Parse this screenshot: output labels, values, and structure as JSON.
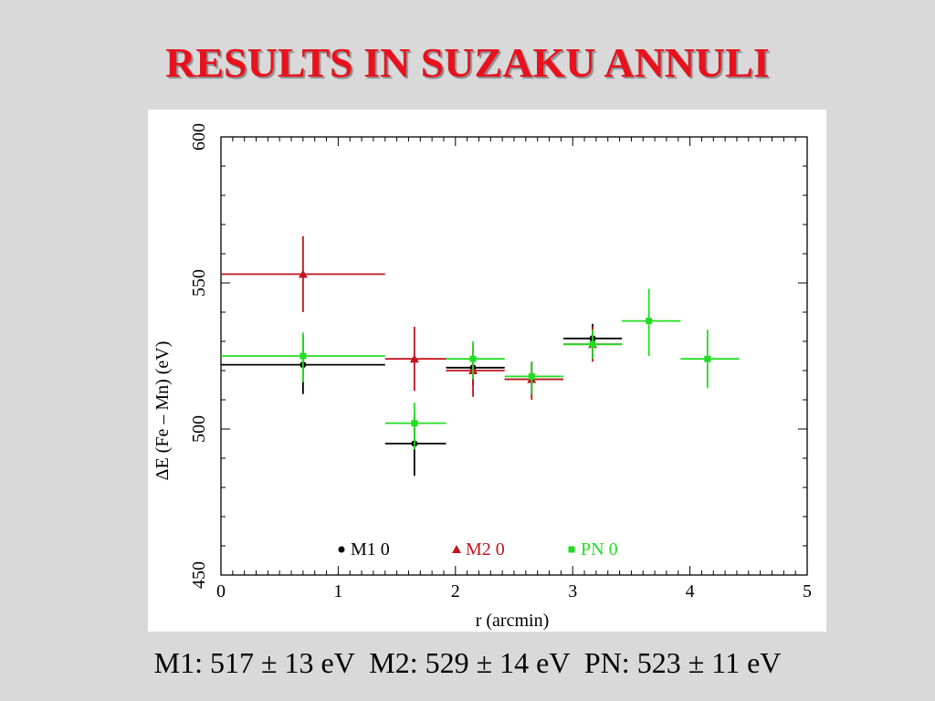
{
  "slide": {
    "title": "RESULTS IN SUZAKU ANNULI",
    "summary": "M1: 517 ± 13 eV  M2: 529 ± 14 eV  PN: 523 ± 11 eV"
  },
  "colors": {
    "title": "#e8111d",
    "M1": "#000000",
    "M2": "#c0151f",
    "PN": "#22dd22"
  },
  "chart_data": {
    "type": "scatter",
    "title": "",
    "xlabel": "r (arcmin)",
    "ylabel": "ΔE (Fe – Mn) (eV)",
    "xlim": [
      0,
      5
    ],
    "ylim": [
      450,
      600
    ],
    "xticks": [
      "0",
      "1",
      "2",
      "3",
      "4",
      "5"
    ],
    "yticks": [
      "450",
      "500",
      "550",
      "600"
    ],
    "legend_placement": "bottom",
    "series": [
      {
        "name": "M1 0",
        "marker": "circle",
        "color": "#000000",
        "points": [
          {
            "x": 0.7,
            "xerr": [
              0.0,
              1.4
            ],
            "y": 522,
            "yerr": [
              512,
              532
            ]
          },
          {
            "x": 1.65,
            "xerr": [
              1.4,
              1.92
            ],
            "y": 495,
            "yerr": [
              484,
              505
            ]
          },
          {
            "x": 2.15,
            "xerr": [
              1.92,
              2.42
            ],
            "y": 521,
            "yerr": [
              515,
              527
            ]
          },
          {
            "x": 2.65,
            "xerr": [
              2.42,
              2.92
            ],
            "y": 517,
            "yerr": [
              512,
              523
            ]
          },
          {
            "x": 3.17,
            "xerr": [
              2.92,
              3.42
            ],
            "y": 531,
            "yerr": [
              524,
              536
            ]
          }
        ]
      },
      {
        "name": "M2 0",
        "marker": "triangle",
        "color": "#c0151f",
        "points": [
          {
            "x": 0.7,
            "xerr": [
              0.0,
              1.4
            ],
            "y": 553,
            "yerr": [
              540,
              566
            ]
          },
          {
            "x": 1.65,
            "xerr": [
              1.4,
              1.92
            ],
            "y": 524,
            "yerr": [
              513,
              535
            ]
          },
          {
            "x": 2.15,
            "xerr": [
              1.92,
              2.42
            ],
            "y": 520,
            "yerr": [
              511,
              529
            ]
          },
          {
            "x": 2.65,
            "xerr": [
              2.42,
              2.92
            ],
            "y": 517,
            "yerr": [
              510,
              523
            ]
          },
          {
            "x": 3.17,
            "xerr": [
              2.92,
              3.42
            ],
            "y": 529,
            "yerr": [
              523,
              535
            ]
          }
        ]
      },
      {
        "name": "PN 0",
        "marker": "square",
        "color": "#22dd22",
        "points": [
          {
            "x": 0.7,
            "xerr": [
              0.0,
              1.4
            ],
            "y": 525,
            "yerr": [
              516,
              533
            ]
          },
          {
            "x": 1.65,
            "xerr": [
              1.4,
              1.92
            ],
            "y": 502,
            "yerr": [
              493,
              509
            ]
          },
          {
            "x": 2.15,
            "xerr": [
              1.92,
              2.42
            ],
            "y": 524,
            "yerr": [
              517,
              530
            ]
          },
          {
            "x": 2.65,
            "xerr": [
              2.42,
              2.92
            ],
            "y": 518,
            "yerr": [
              512,
              523
            ]
          },
          {
            "x": 3.17,
            "xerr": [
              2.92,
              3.42
            ],
            "y": 529,
            "yerr": [
              524,
              534
            ]
          },
          {
            "x": 3.65,
            "xerr": [
              3.42,
              3.92
            ],
            "y": 537,
            "yerr": [
              525,
              548
            ]
          },
          {
            "x": 4.15,
            "xerr": [
              3.92,
              4.42
            ],
            "y": 524,
            "yerr": [
              514,
              534
            ]
          }
        ]
      }
    ]
  }
}
